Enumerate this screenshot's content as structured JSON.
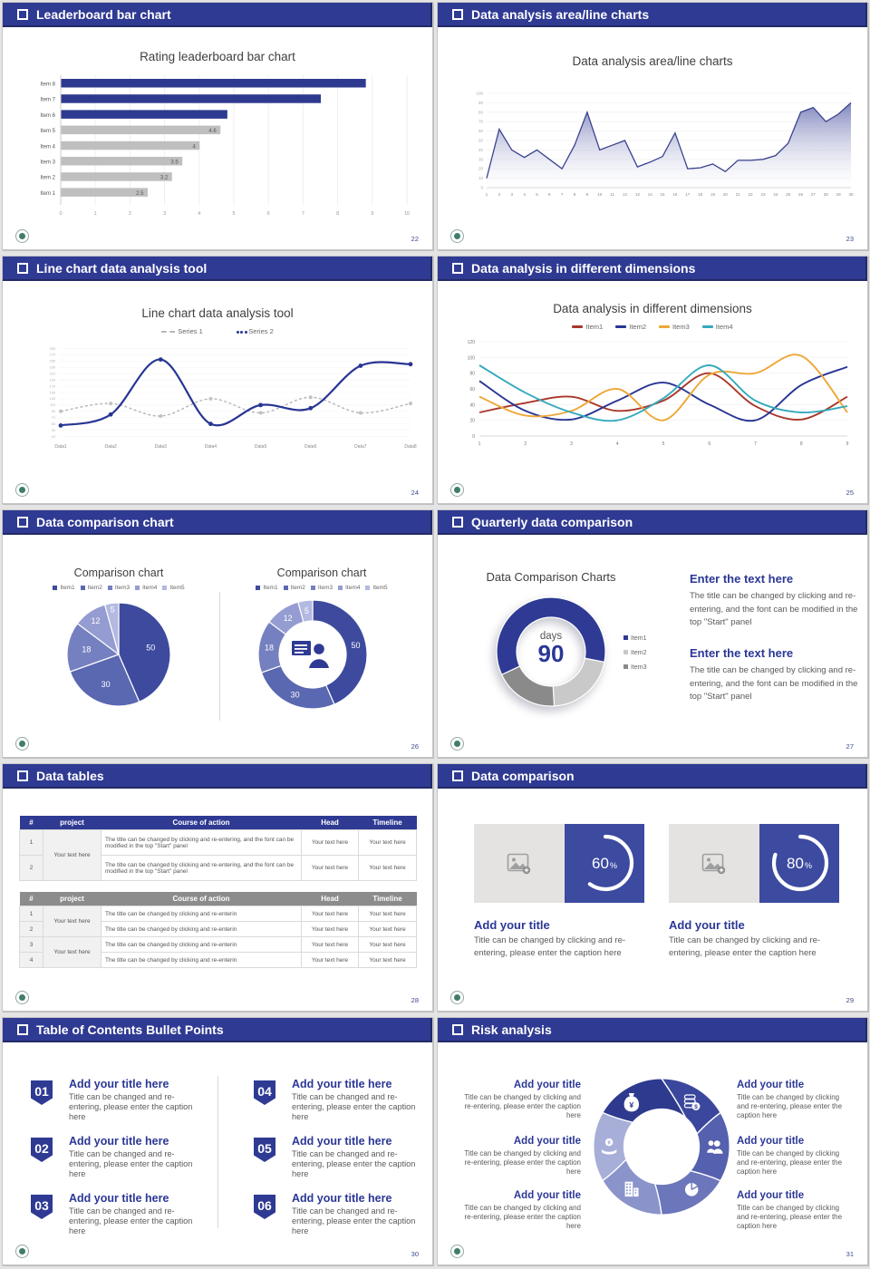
{
  "deck": {
    "background": "#e8e8e8"
  },
  "slides": [
    {
      "header": "Leaderboard bar chart",
      "page": "22",
      "title": "Rating leaderboard bar chart",
      "chart_data": {
        "type": "bar",
        "orientation": "horizontal",
        "xlim": [
          0,
          10
        ],
        "xticks": [
          0,
          1,
          2,
          3,
          4,
          5,
          6,
          7,
          8,
          9,
          10
        ],
        "bars": [
          {
            "cat": "Item 8",
            "value": 8.8,
            "color": "#2e3a8f",
            "value_label": ""
          },
          {
            "cat": "Item 7",
            "value": 7.5,
            "color": "#2e3a8f",
            "value_label": ""
          },
          {
            "cat": "Item 6",
            "value": 4.8,
            "color": "#2e3a8f",
            "value_label": ""
          },
          {
            "cat": "Item 5",
            "value": 4.6,
            "color": "#bfbfbf",
            "value_label": "4.6"
          },
          {
            "cat": "Item 4",
            "value": 4.0,
            "color": "#bfbfbf",
            "value_label": "4"
          },
          {
            "cat": "Item 3",
            "value": 3.5,
            "color": "#bfbfbf",
            "value_label": "3.5"
          },
          {
            "cat": "Item 2",
            "value": 3.2,
            "color": "#bfbfbf",
            "value_label": "3.2"
          },
          {
            "cat": "Item 1",
            "value": 2.5,
            "color": "#bfbfbf",
            "value_label": "2.5"
          }
        ]
      }
    },
    {
      "header": "Data analysis area/line charts",
      "page": "23",
      "title": "Data analysis area/line charts",
      "chart_data": {
        "type": "area",
        "ylim": [
          0,
          100
        ],
        "yticks": [
          0,
          10,
          20,
          30,
          40,
          50,
          60,
          70,
          80,
          90,
          100
        ],
        "x": [
          1,
          2,
          3,
          4,
          5,
          6,
          7,
          8,
          9,
          10,
          11,
          12,
          13,
          14,
          15,
          16,
          17,
          18,
          19,
          20,
          21,
          22,
          23,
          24,
          25,
          26,
          27,
          28,
          29,
          30
        ],
        "values": [
          10,
          62,
          40,
          32,
          40,
          30,
          20,
          45,
          80,
          40,
          45,
          50,
          22,
          27,
          33,
          58,
          20,
          21,
          25,
          17,
          29,
          29,
          30,
          34,
          47,
          80,
          85,
          70,
          78,
          90
        ],
        "line_color": "#3a428f"
      }
    },
    {
      "header": "Line chart data analysis tool",
      "page": "24",
      "title": "Line chart data analysis tool",
      "chart_data": {
        "type": "line",
        "categories": [
          "Data1",
          "Data2",
          "Data3",
          "Data4",
          "Data5",
          "Data6",
          "Data7",
          "Data8"
        ],
        "yticks": [
          290,
          270,
          250,
          230,
          210,
          190,
          170,
          150,
          130,
          110,
          90,
          70,
          50,
          30,
          10
        ],
        "ylim": [
          0,
          300
        ],
        "series": [
          {
            "name": "Series 1",
            "color": "#b5b5b5",
            "dashed": true,
            "values": [
              90,
              115,
              75,
              130,
              85,
              135,
              85,
              115
            ]
          },
          {
            "name": "Series 2",
            "color": "#283593",
            "dashed": false,
            "values": [
              45,
              80,
              255,
              50,
              110,
              100,
              235,
              240
            ]
          }
        ]
      }
    },
    {
      "header": "Data analysis in different dimensions",
      "page": "25",
      "title": "Data analysis in different dimensions",
      "chart_data": {
        "type": "line",
        "x": [
          1,
          2,
          3,
          4,
          5,
          6,
          7,
          8,
          9
        ],
        "yticks": [
          0,
          20,
          40,
          60,
          80,
          100,
          120
        ],
        "ylim": [
          0,
          120
        ],
        "series": [
          {
            "name": "Item1",
            "color": "#a9372a",
            "values": [
              30,
              42,
              50,
              32,
              45,
              80,
              38,
              21,
              50
            ]
          },
          {
            "name": "Item2",
            "color": "#283593",
            "values": [
              70,
              32,
              21,
              45,
              68,
              40,
              20,
              65,
              88
            ]
          },
          {
            "name": "Item3",
            "color": "#eda838",
            "values": [
              50,
              26,
              32,
              60,
              20,
              78,
              80,
              102,
              30
            ]
          },
          {
            "name": "Item4",
            "color": "#35aabc",
            "values": [
              90,
              55,
              30,
              20,
              48,
              90,
              45,
              30,
              38
            ]
          }
        ]
      }
    },
    {
      "header": "Data comparison chart",
      "page": "26",
      "left_title": "Comparison chart",
      "right_title": "Comparison chart",
      "chart_data": {
        "type": "pie",
        "legend": [
          "Item1",
          "Item2",
          "Item3",
          "Item4",
          "Item5"
        ],
        "values": [
          50,
          30,
          18,
          12,
          5
        ],
        "colors": [
          "#3d4a9e",
          "#5a67b1",
          "#7580c1",
          "#949cd1",
          "#b3b9e0"
        ],
        "donut_values": [
          50,
          30,
          18,
          12,
          5
        ],
        "center_icon": "presenter-icon"
      }
    },
    {
      "header": "Quarterly data comparison",
      "page": "27",
      "title": "Data Comparison Charts",
      "chart_data": {
        "type": "donut",
        "values": [
          60,
          21,
          19
        ],
        "start_deg": 245,
        "colors": [
          "#2e3a93",
          "#c9c9c9",
          "#8a8a8a"
        ],
        "legend": [
          "Item1",
          "Item2",
          "Item3"
        ],
        "center_label": "days",
        "center_value": "90"
      },
      "blocks": [
        {
          "heading": "Enter the text here",
          "body": "The title can be changed by clicking and re-entering, and the font can be modified in the top \"Start\" panel"
        },
        {
          "heading": "Enter the text here",
          "body": "The title can be changed by clicking and re-entering, and the font can be modified in the top \"Start\" panel"
        }
      ]
    },
    {
      "header": "Data tables",
      "page": "28",
      "table1": {
        "headers": [
          "#",
          "project",
          "Course of action",
          "Head",
          "Timeline"
        ],
        "rows": [
          "1",
          "2"
        ],
        "project": "Your text here",
        "course": "The title can be changed by clicking and re-entering, and the font can be modified in the top \"Start\" panel",
        "cell": "Your text here"
      },
      "table2": {
        "headers": [
          "#",
          "project",
          "Course of action",
          "Head",
          "Timeline"
        ],
        "rows": [
          "1",
          "2",
          "3",
          "4"
        ],
        "project": "Your text here",
        "course": "The title can be changed by clicking and re-enterin",
        "cell": "Your text here"
      }
    },
    {
      "header": "Data comparison",
      "page": "29",
      "cards": [
        {
          "percent": 60,
          "percent_text": "60",
          "sign": "%",
          "title": "Add your title",
          "caption": "Title can be changed by clicking and re-entering, please enter the caption here"
        },
        {
          "percent": 80,
          "percent_text": "80",
          "sign": "%",
          "title": "Add your title",
          "caption": "Title can be changed by clicking and re-entering, please enter the caption here"
        }
      ]
    },
    {
      "header": "Table of Contents Bullet Points",
      "page": "30",
      "items": [
        {
          "num": "01",
          "title": "Add your title here",
          "caption": "Title can be changed and re-entering, please enter the caption here"
        },
        {
          "num": "02",
          "title": "Add your title here",
          "caption": "Title can be changed and re-entering, please enter the caption here"
        },
        {
          "num": "03",
          "title": "Add your title here",
          "caption": "Title can be changed and re-entering, please enter the caption here"
        },
        {
          "num": "04",
          "title": "Add your title here",
          "caption": "Title can be changed and re-entering, please enter the caption here"
        },
        {
          "num": "05",
          "title": "Add your title here",
          "caption": "Title can be changed and re-entering, please enter the caption here"
        },
        {
          "num": "06",
          "title": "Add your title here",
          "caption": "Title can be changed and re-entering, please enter the caption here"
        }
      ]
    },
    {
      "header": "Risk analysis",
      "page": "31",
      "wheel_colors": [
        "#3a479c",
        "#5561ae",
        "#6b76bb",
        "#8a93ca",
        "#a7aed8",
        "#2d3a8e"
      ],
      "icons": [
        "coins-icon",
        "people-icon",
        "pie-chart-icon",
        "building-icon",
        "hand-coin-icon",
        "money-bag-icon"
      ],
      "blocks": [
        {
          "title": "Add your title",
          "caption": "Title can be changed by clicking and re-entering, please enter the caption here"
        },
        {
          "title": "Add your title",
          "caption": "Title can be changed by clicking and re-entering, please enter the caption here"
        },
        {
          "title": "Add your title",
          "caption": "Title can be changed by clicking and re-entering, please enter the caption here"
        },
        {
          "title": "Add your title",
          "caption": "Title can be changed by clicking and re-entering, please enter the caption here"
        },
        {
          "title": "Add your title",
          "caption": "Title can be changed by clicking and re-entering, please enter the caption here"
        },
        {
          "title": "Add your title",
          "caption": "Title can be changed by clicking and re-entering, please enter the caption here"
        }
      ]
    }
  ]
}
